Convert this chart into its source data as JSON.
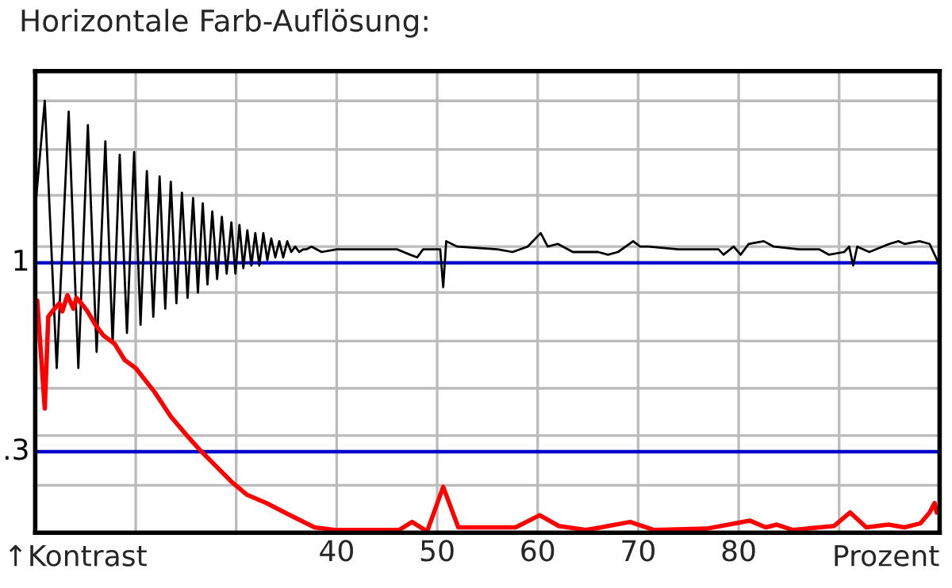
{
  "chart_data": {
    "type": "line",
    "title": "Horizontale Farb-Auflösung:",
    "xlabel": "Prozent",
    "annotations": [
      "↑Kontrast"
    ],
    "xlim": [
      10,
      100
    ],
    "xticks": [
      {
        "value": 20,
        "label": null
      },
      {
        "value": 30,
        "label": null
      },
      40,
      50,
      60,
      70,
      80,
      {
        "value": 90,
        "label": null
      }
    ],
    "ylim": [
      0,
      1.71
    ],
    "yticks": [
      {
        "value": 0.176,
        "label": null
      },
      {
        "value": 0.36,
        "label": null
      },
      {
        "value": 0.535,
        "label": null
      },
      {
        "value": 0.71,
        "label": null
      },
      {
        "value": 0.89,
        "label": null
      },
      {
        "value": 1.06,
        "label": null
      },
      {
        "value": 1.25,
        "label": null
      },
      {
        "value": 1.42,
        "label": null
      },
      {
        "value": 1.6,
        "label": null
      }
    ],
    "grid": true,
    "legend": false,
    "marker": "none",
    "line_style": "solid",
    "ref_lines": [
      {
        "axis": "y",
        "value": 1,
        "label": "1",
        "color": "#0000cc"
      },
      {
        "axis": "y",
        "value": 0.3,
        "label": ".3",
        "color": "#0000cc"
      }
    ],
    "series": [
      {
        "color": "#000000",
        "x": [
          10.0,
          10.95,
          12.14,
          13.33,
          14.29,
          15.24,
          16.11,
          16.98,
          17.7,
          18.41,
          19.13,
          19.84,
          20.48,
          21.11,
          21.75,
          22.38,
          22.94,
          23.49,
          24.05,
          24.6,
          25.16,
          25.71,
          26.19,
          26.67,
          27.14,
          27.62,
          28.1,
          28.57,
          29.05,
          29.52,
          29.92,
          30.32,
          30.71,
          31.11,
          31.51,
          31.9,
          32.3,
          32.7,
          33.1,
          33.49,
          33.89,
          34.29,
          34.68,
          35.08,
          35.48,
          35.87,
          36.27,
          36.67,
          37.0,
          37.5,
          38.5,
          40,
          46,
          47.3,
          48,
          48.6,
          50.3,
          50.6,
          50.9,
          52,
          56,
          57.5,
          59,
          60.3,
          61,
          62,
          63.5,
          66,
          67,
          68,
          69.5,
          70.2,
          71,
          74,
          76,
          78,
          78.5,
          79.5,
          80.2,
          81,
          82.5,
          83.5,
          86,
          88,
          89,
          90.5,
          91,
          91.4,
          91.8,
          93,
          95,
          95.9,
          96.5,
          98,
          99,
          100
        ],
        "values": [
          1.2,
          1.6,
          0.61,
          1.56,
          0.61,
          1.51,
          0.67,
          1.45,
          0.7,
          1.4,
          0.74,
          1.41,
          0.77,
          1.34,
          0.8,
          1.32,
          0.83,
          1.3,
          0.85,
          1.26,
          0.87,
          1.24,
          0.89,
          1.22,
          0.92,
          1.19,
          0.94,
          1.17,
          0.96,
          1.15,
          0.96,
          1.14,
          0.98,
          1.12,
          0.99,
          1.11,
          0.99,
          1.11,
          1.01,
          1.09,
          1.02,
          1.08,
          1.02,
          1.08,
          1.04,
          1.06,
          1.04,
          1.05,
          1.05,
          1.06,
          1.04,
          1.05,
          1.05,
          1.03,
          1.02,
          1.05,
          1.05,
          0.91,
          1.08,
          1.06,
          1.05,
          1.04,
          1.06,
          1.11,
          1.06,
          1.07,
          1.04,
          1.04,
          1.03,
          1.04,
          1.08,
          1.06,
          1.06,
          1.05,
          1.05,
          1.05,
          1.03,
          1.06,
          1.03,
          1.07,
          1.08,
          1.06,
          1.05,
          1.05,
          1.03,
          1.04,
          1.06,
          0.99,
          1.06,
          1.04,
          1.07,
          1.08,
          1.07,
          1.08,
          1.07,
          0.99
        ]
      },
      {
        "color": "#ff0000",
        "x": [
          10.2,
          10.95,
          11.3,
          11.7,
          12.4,
          12.7,
          13.2,
          13.8,
          14.1,
          14.8,
          15.2,
          16.0,
          16.8,
          17.9,
          18.9,
          20.0,
          21.9,
          23.5,
          25.1,
          26.3,
          27.9,
          29.5,
          31.1,
          33.0,
          35.1,
          37.8,
          39.8,
          46.2,
          47.5,
          49.0,
          50.6,
          52.1,
          55.2,
          57.8,
          60.2,
          62.1,
          64.8,
          66.3,
          69.2,
          71.6,
          76.8,
          79.0,
          81.1,
          82.7,
          83.8,
          85.4,
          88.0,
          89.5,
          91.1,
          92.7,
          94.9,
          96.5,
          98.1,
          99.0,
          99.5,
          99.7
        ],
        "values": [
          0.86,
          0.46,
          0.8,
          0.82,
          0.85,
          0.82,
          0.88,
          0.83,
          0.87,
          0.84,
          0.82,
          0.77,
          0.73,
          0.7,
          0.64,
          0.61,
          0.52,
          0.43,
          0.36,
          0.31,
          0.25,
          0.19,
          0.14,
          0.11,
          0.07,
          0.02,
          0.01,
          0.01,
          0.04,
          0.005,
          0.17,
          0.02,
          0.02,
          0.02,
          0.065,
          0.025,
          0.01,
          0.02,
          0.04,
          0.01,
          0.015,
          0.03,
          0.045,
          0.02,
          0.03,
          0.01,
          0.02,
          0.025,
          0.075,
          0.02,
          0.03,
          0.02,
          0.035,
          0.075,
          0.11,
          0.075
        ]
      }
    ]
  }
}
